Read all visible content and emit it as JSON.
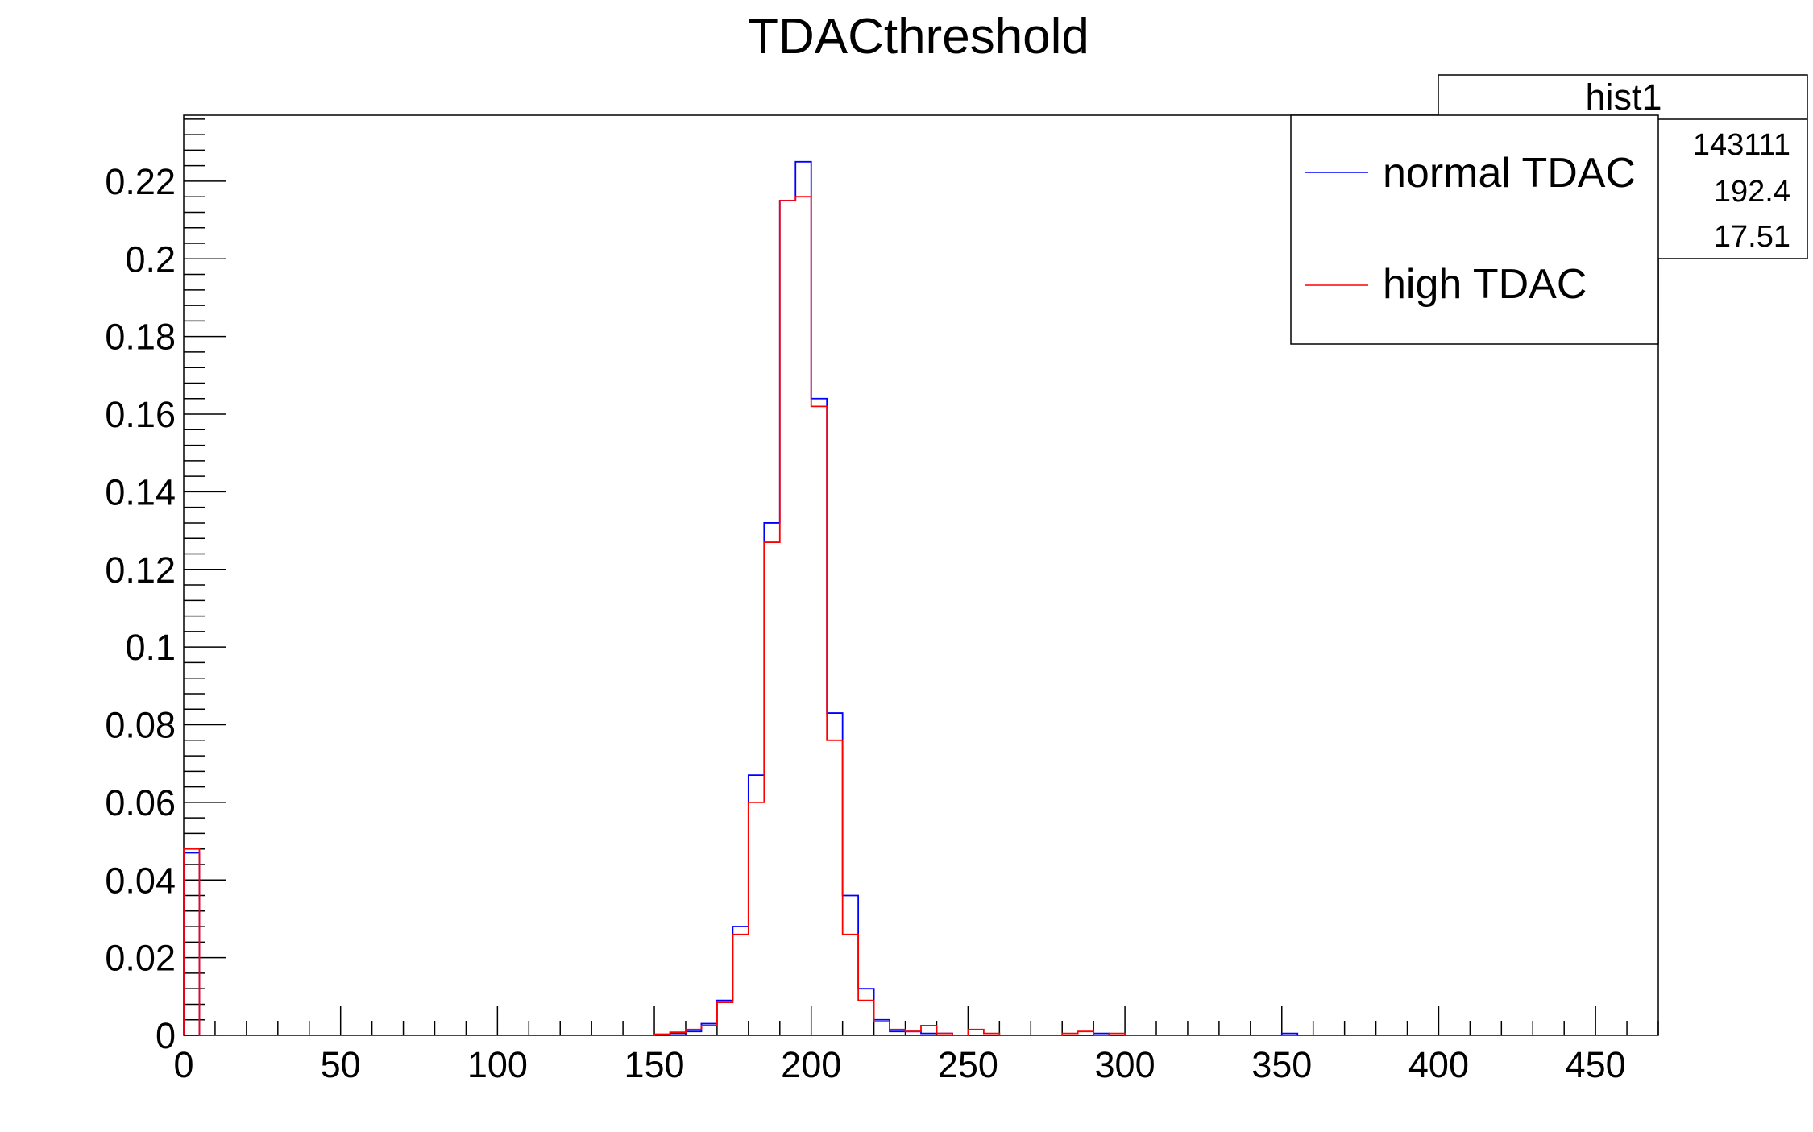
{
  "chart_data": {
    "type": "histogram",
    "title": "TDACthreshold",
    "xlabel": "",
    "ylabel": "",
    "xlim": [
      0,
      470
    ],
    "ylim": [
      0,
      0.237
    ],
    "bin_width": 5,
    "x_ticks": [
      "0",
      "50",
      "100",
      "150",
      "200",
      "250",
      "300",
      "350",
      "400",
      "450"
    ],
    "y_ticks": [
      "0",
      "0.02",
      "0.04",
      "0.06",
      "0.08",
      "0.1",
      "0.12",
      "0.14",
      "0.16",
      "0.18",
      "0.2",
      "0.22"
    ],
    "grid": false,
    "series": [
      {
        "name": "normal TDAC",
        "color": "#0000ff",
        "bins": [
          [
            0,
            0.047
          ],
          [
            155,
            0.0005
          ],
          [
            160,
            0.001
          ],
          [
            165,
            0.003
          ],
          [
            170,
            0.009
          ],
          [
            175,
            0.028
          ],
          [
            180,
            0.067
          ],
          [
            185,
            0.132
          ],
          [
            190,
            0.215
          ],
          [
            195,
            0.225
          ],
          [
            200,
            0.164
          ],
          [
            205,
            0.083
          ],
          [
            210,
            0.036
          ],
          [
            215,
            0.012
          ],
          [
            220,
            0.004
          ],
          [
            225,
            0.001
          ],
          [
            230,
            0.001
          ],
          [
            235,
            0.0005
          ],
          [
            240,
            0.0005
          ],
          [
            290,
            0.0005
          ],
          [
            350,
            0.0005
          ]
        ]
      },
      {
        "name": "high TDAC",
        "color": "#ff0000",
        "bins": [
          [
            0,
            0.048
          ],
          [
            150,
            0.0003
          ],
          [
            155,
            0.0008
          ],
          [
            160,
            0.0015
          ],
          [
            165,
            0.0025
          ],
          [
            170,
            0.0085
          ],
          [
            175,
            0.026
          ],
          [
            180,
            0.06
          ],
          [
            185,
            0.127
          ],
          [
            190,
            0.215
          ],
          [
            195,
            0.216
          ],
          [
            200,
            0.162
          ],
          [
            205,
            0.076
          ],
          [
            210,
            0.026
          ],
          [
            215,
            0.009
          ],
          [
            220,
            0.0035
          ],
          [
            225,
            0.0015
          ],
          [
            230,
            0.001
          ],
          [
            235,
            0.0025
          ],
          [
            240,
            0.0005
          ],
          [
            250,
            0.0015
          ],
          [
            255,
            0.0005
          ],
          [
            280,
            0.0005
          ],
          [
            285,
            0.001
          ],
          [
            295,
            0.0005
          ]
        ]
      }
    ],
    "stats_box": {
      "title": "hist1",
      "values": [
        "143111",
        "192.4",
        "17.51"
      ]
    },
    "legend_position": "top-right"
  }
}
